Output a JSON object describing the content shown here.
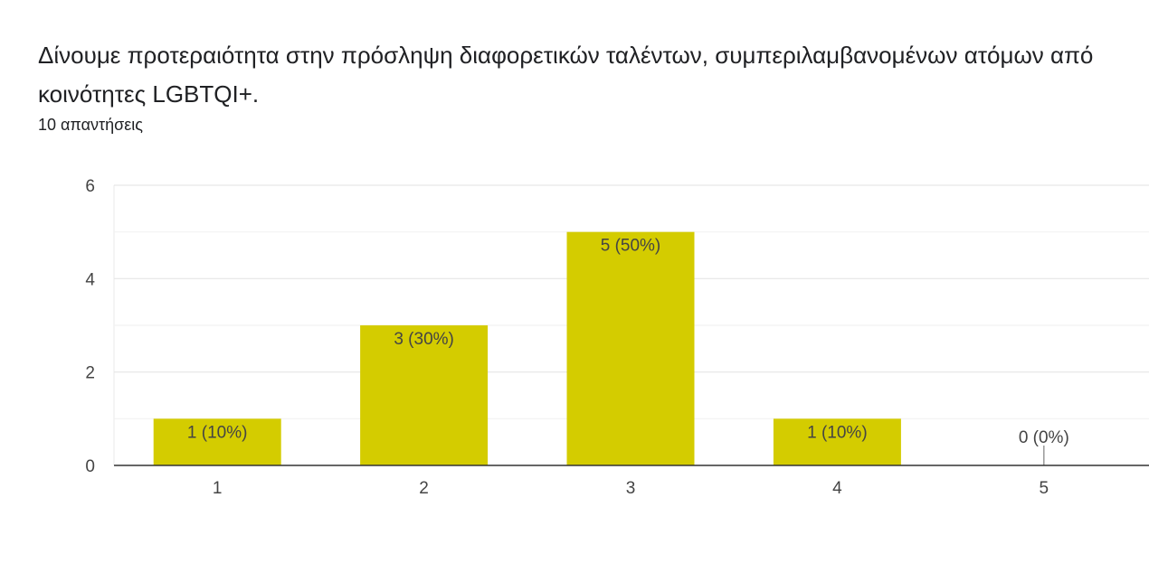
{
  "header": {
    "title": "Δίνουμε προτεραιότητα στην πρόσληψη διαφορετικών ταλέντων, συμπεριλαμβανομένων ατόμων από κοινότητες LGBTQI+.",
    "responses": "10 απαντήσεις"
  },
  "chart_data": {
    "type": "bar",
    "categories": [
      "1",
      "2",
      "3",
      "4",
      "5"
    ],
    "values": [
      1,
      3,
      5,
      1,
      0
    ],
    "data_labels": [
      "1 (10%)",
      "3 (30%)",
      "5 (50%)",
      "1 (10%)",
      "0 (0%)"
    ],
    "ylim": [
      0,
      6
    ],
    "yticks": [
      0,
      2,
      4,
      6
    ],
    "grid": true,
    "bar_color": "#d4cc00",
    "gridline_color": "#e8e8e8",
    "axis_color": "#333333"
  }
}
